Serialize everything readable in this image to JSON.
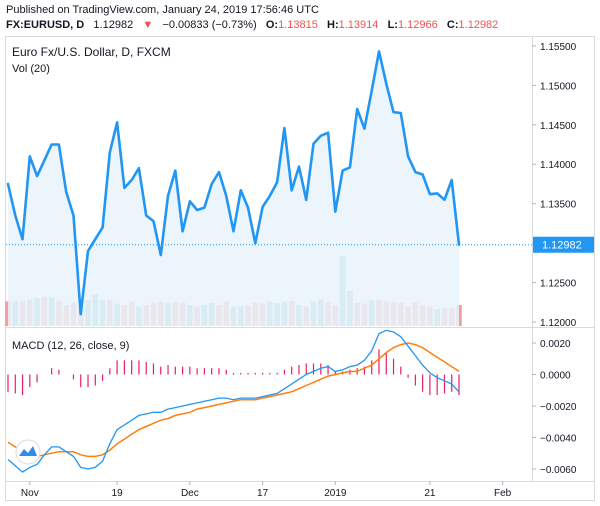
{
  "header": {
    "published": "Published on TradingView.com, January 24, 2019 17:56:46 UTC",
    "symbol": "FX:EURUSD, D",
    "last": "1.12982",
    "change": "−0.00833 (−0.73%)",
    "o_label": "O:",
    "o_value": "1.13815",
    "h_label": "H:",
    "h_value": "1.13914",
    "l_label": "L:",
    "l_value": "1.12966",
    "c_label": "C:",
    "c_value": "1.12982"
  },
  "chart_data": [
    {
      "type": "line",
      "title": "Euro Fx/U.S. Dollar, D, FXCM",
      "subtitle": "Vol (20)",
      "colors": {
        "line": "#2196f3",
        "area": "#e9f2fc",
        "last_label": "#2196f3",
        "vol_up": "#7fcbc1",
        "vol_down": "#ee9fa0"
      },
      "yticks": [
        "1.15500",
        "1.15000",
        "1.14500",
        "1.14000",
        "1.13500",
        "1.13000",
        "1.12500",
        "1.12000"
      ],
      "ylim": [
        1.1195,
        1.156
      ],
      "last_value": "1.12982",
      "close": [
        1.1375,
        1.1335,
        1.1305,
        1.141,
        1.1385,
        1.1405,
        1.1425,
        1.1425,
        1.1365,
        1.1335,
        1.121,
        1.129,
        1.1305,
        1.132,
        1.1415,
        1.1453,
        1.137,
        1.138,
        1.1395,
        1.1335,
        1.1328,
        1.1285,
        1.136,
        1.1392,
        1.1315,
        1.1353,
        1.1342,
        1.1345,
        1.1375,
        1.139,
        1.136,
        1.1315,
        1.1367,
        1.1345,
        1.13,
        1.1346,
        1.136,
        1.1377,
        1.1446,
        1.1367,
        1.1397,
        1.1355,
        1.1426,
        1.1436,
        1.144,
        1.134,
        1.1392,
        1.1396,
        1.147,
        1.1445,
        1.1493,
        1.1543,
        1.1502,
        1.1466,
        1.1465,
        1.141,
        1.139,
        1.1387,
        1.1362,
        1.1363,
        1.1355,
        1.138,
        1.1298
      ],
      "volume": [
        0.35,
        0.35,
        0.35,
        0.38,
        0.4,
        0.42,
        0.41,
        0.36,
        0.3,
        0.33,
        0.28,
        0.37,
        0.45,
        0.38,
        0.37,
        0.32,
        0.3,
        0.35,
        0.28,
        0.3,
        0.33,
        0.35,
        0.33,
        0.34,
        0.33,
        0.3,
        0.28,
        0.3,
        0.33,
        0.3,
        0.35,
        0.28,
        0.28,
        0.3,
        0.33,
        0.32,
        0.35,
        0.33,
        0.35,
        0.36,
        0.3,
        0.28,
        0.35,
        0.38,
        0.34,
        0.3,
        1.0,
        0.5,
        0.33,
        0.32,
        0.37,
        0.38,
        0.35,
        0.34,
        0.33,
        0.28,
        0.33,
        0.3,
        0.28,
        0.24,
        0.26,
        0.25,
        0.3
      ],
      "volume_up": [
        false,
        true,
        false,
        false,
        true,
        false,
        true,
        false,
        false,
        false,
        false,
        true,
        true,
        true,
        false,
        true,
        false,
        false,
        true,
        false,
        false,
        false,
        true,
        false,
        false,
        true,
        false,
        true,
        true,
        false,
        false,
        true,
        true,
        false,
        false,
        false,
        true,
        true,
        true,
        false,
        true,
        false,
        true,
        true,
        false,
        false,
        true,
        true,
        false,
        false,
        true,
        false,
        false,
        false,
        false,
        false,
        false,
        false,
        false,
        true,
        false,
        false,
        false
      ]
    },
    {
      "type": "line",
      "title": "MACD (12, 26, close, 9)",
      "colors": {
        "macd": "#2196f3",
        "signal": "#ff7f0e",
        "hist": "#e91e63"
      },
      "yticks": [
        "0.0020",
        "0.0000",
        "−0.0020",
        "−0.0040",
        "−0.0060"
      ],
      "ylim": [
        -0.0067,
        0.0027
      ],
      "macd": [
        -0.0054,
        -0.0058,
        -0.0062,
        -0.0059,
        -0.0057,
        -0.0051,
        -0.0046,
        -0.0046,
        -0.0049,
        -0.0052,
        -0.0059,
        -0.006,
        -0.0059,
        -0.0055,
        -0.0044,
        -0.0035,
        -0.0032,
        -0.0029,
        -0.0026,
        -0.0025,
        -0.0024,
        -0.0024,
        -0.0022,
        -0.0021,
        -0.002,
        -0.0019,
        -0.0018,
        -0.0017,
        -0.0016,
        -0.0015,
        -0.0015,
        -0.0016,
        -0.0015,
        -0.0015,
        -0.0015,
        -0.0014,
        -0.0013,
        -0.0012,
        -0.0009,
        -0.0006,
        -0.0003,
        0.0,
        0.0002,
        0.0004,
        0.0005,
        0.0002,
        0.0003,
        0.0005,
        0.0006,
        0.0009,
        0.0015,
        0.0026,
        0.0028,
        0.0027,
        0.0024,
        0.0018,
        0.0012,
        0.0006,
        0.0001,
        -0.0002,
        -0.0004,
        -0.0006,
        -0.0011
      ],
      "signal": [
        -0.0043,
        -0.0046,
        -0.0049,
        -0.0051,
        -0.0052,
        -0.0051,
        -0.005,
        -0.0049,
        -0.0049,
        -0.0049,
        -0.0051,
        -0.0052,
        -0.0052,
        -0.0051,
        -0.0048,
        -0.0044,
        -0.0041,
        -0.0038,
        -0.0035,
        -0.0033,
        -0.0031,
        -0.0029,
        -0.0028,
        -0.0026,
        -0.0025,
        -0.0024,
        -0.0022,
        -0.0021,
        -0.002,
        -0.0019,
        -0.0018,
        -0.0017,
        -0.0016,
        -0.0016,
        -0.0016,
        -0.0015,
        -0.0014,
        -0.0013,
        -0.0012,
        -0.0011,
        -0.0009,
        -0.0007,
        -0.0005,
        -0.0003,
        -0.0001,
        0.0,
        0.0001,
        0.0002,
        0.0002,
        0.0004,
        0.0006,
        0.001,
        0.0014,
        0.0017,
        0.0019,
        0.002,
        0.0019,
        0.0017,
        0.0014,
        0.0011,
        0.0008,
        0.0005,
        0.0002
      ]
    }
  ],
  "xaxis": {
    "labels": [
      {
        "text": "Nov",
        "index": 3
      },
      {
        "text": "19",
        "index": 15
      },
      {
        "text": "Dec",
        "index": 25
      },
      {
        "text": "17",
        "index": 35
      },
      {
        "text": "2019",
        "index": 45
      },
      {
        "text": "21",
        "index": 58
      },
      {
        "text": "Feb",
        "index": 68
      }
    ]
  },
  "icons": {
    "logo": "tradingview-logo-icon"
  }
}
